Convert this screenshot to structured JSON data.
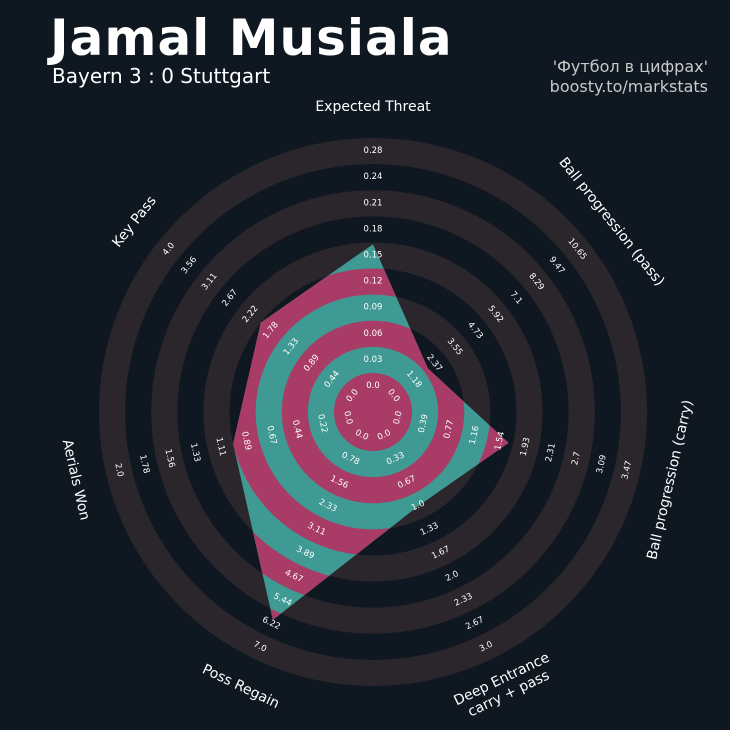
{
  "header": {
    "title": "Jamal Musiala",
    "subtitle": "Bayern 3 : 0 Stuttgart",
    "credit_line1": "'Футбол в цифрах'",
    "credit_line2": "boosty.to/markstats"
  },
  "colors": {
    "background": "#0f1820",
    "ring_dark": "#2a262c",
    "player_teal": "#3f9a93",
    "player_pink": "#a83c67"
  },
  "chart_data": {
    "type": "radar",
    "title": "Jamal Musiala",
    "grid": true,
    "axes": [
      {
        "label": "Expected Threat",
        "ticks": [
          "0.0",
          "0.03",
          "0.06",
          "0.09",
          "0.12",
          "0.15",
          "0.18",
          "0.21",
          "0.24",
          "0.28"
        ],
        "min": 0.0,
        "max": 0.28,
        "value": 0.169
      },
      {
        "label": "Ball progression (pass)",
        "ticks": [
          "0.0",
          "1.18",
          "2.37",
          "3.55",
          "4.73",
          "5.92",
          "7.1",
          "8.29",
          "9.47",
          "10.65"
        ],
        "min": 0.0,
        "max": 10.65,
        "value": 2.0
      },
      {
        "label": "Ball progression (carry)",
        "ticks": [
          "0.0",
          "0.39",
          "0.77",
          "1.16",
          "1.54",
          "1.93",
          "2.31",
          "2.7",
          "3.09",
          "3.47"
        ],
        "min": 0.0,
        "max": 3.47,
        "value": 1.67
      },
      {
        "label": "Deep Entrance\ncarry + pass",
        "ticks": [
          "0.0",
          "0.33",
          "0.67",
          "1.0",
          "1.33",
          "1.67",
          "2.0",
          "2.33",
          "2.67",
          "3.0"
        ],
        "min": 0.0,
        "max": 3.0,
        "value": 1.0
      },
      {
        "label": "Poss Regain",
        "ticks": [
          "0.0",
          "0.78",
          "1.56",
          "2.33",
          "3.11",
          "3.89",
          "4.67",
          "5.44",
          "6.22",
          "7.0"
        ],
        "min": 0.0,
        "max": 7.0,
        "value": 6.1
      },
      {
        "label": "Aerials Won",
        "ticks": [
          "0.0",
          "0.22",
          "0.44",
          "0.67",
          "0.89",
          "1.11",
          "1.33",
          "1.56",
          "1.78",
          "2.0"
        ],
        "min": 0.0,
        "max": 2.0,
        "value": 1.0
      },
      {
        "label": "Key Pass",
        "ticks": [
          "0.0",
          "0.44",
          "0.89",
          "1.33",
          "1.78",
          "2.22",
          "2.67",
          "3.11",
          "3.56",
          "4.0"
        ],
        "min": 0.0,
        "max": 4.0,
        "value": 2.0
      }
    ]
  }
}
